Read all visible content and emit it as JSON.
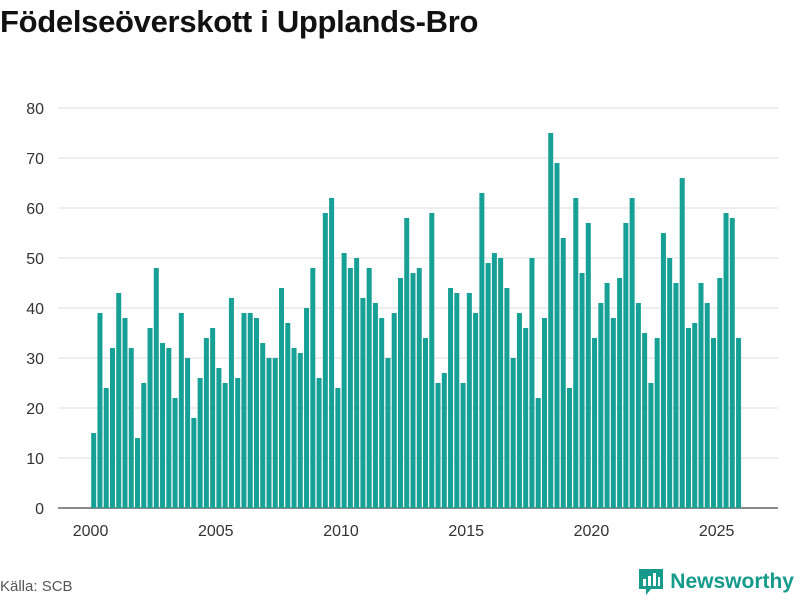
{
  "title": "Födelseöverskott i Upplands-Bro",
  "source": "Källa: SCB",
  "brand": "Newsworthy",
  "colors": {
    "bar": "#17a196",
    "grid": "#dddddd",
    "brand": "#159a8c"
  },
  "chart_data": {
    "type": "bar",
    "title": "Födelseöverskott i Upplands-Bro",
    "xlabel": "",
    "ylabel": "",
    "ylim": [
      0,
      80
    ],
    "yticks": [
      "0",
      "10",
      "20",
      "30",
      "40",
      "50",
      "60",
      "70",
      "80"
    ],
    "xticks": [
      "2000",
      "2005",
      "2010",
      "2015",
      "2020",
      "2025"
    ],
    "frequency": "quarterly",
    "start": "2000 Q1",
    "categories": [
      "2000 Q1",
      "2000 Q2",
      "2000 Q3",
      "2000 Q4",
      "2001 Q1",
      "2001 Q2",
      "2001 Q3",
      "2001 Q4",
      "2002 Q1",
      "2002 Q2",
      "2002 Q3",
      "2002 Q4",
      "2003 Q1",
      "2003 Q2",
      "2003 Q3",
      "2003 Q4",
      "2004 Q1",
      "2004 Q2",
      "2004 Q3",
      "2004 Q4",
      "2005 Q1",
      "2005 Q2",
      "2005 Q3",
      "2005 Q4",
      "2006 Q1",
      "2006 Q2",
      "2006 Q3",
      "2006 Q4",
      "2007 Q1",
      "2007 Q2",
      "2007 Q3",
      "2007 Q4",
      "2008 Q1",
      "2008 Q2",
      "2008 Q3",
      "2008 Q4",
      "2009 Q1",
      "2009 Q2",
      "2009 Q3",
      "2009 Q4",
      "2010 Q1",
      "2010 Q2",
      "2010 Q3",
      "2010 Q4",
      "2011 Q1",
      "2011 Q2",
      "2011 Q3",
      "2011 Q4",
      "2012 Q1",
      "2012 Q2",
      "2012 Q3",
      "2012 Q4",
      "2013 Q1",
      "2013 Q2",
      "2013 Q3",
      "2013 Q4",
      "2014 Q1",
      "2014 Q2",
      "2014 Q3",
      "2014 Q4",
      "2015 Q1",
      "2015 Q2",
      "2015 Q3",
      "2015 Q4",
      "2016 Q1",
      "2016 Q2",
      "2016 Q3",
      "2016 Q4",
      "2017 Q1",
      "2017 Q2",
      "2017 Q3",
      "2017 Q4",
      "2018 Q1",
      "2018 Q2",
      "2018 Q3",
      "2018 Q4",
      "2019 Q1",
      "2019 Q2",
      "2019 Q3",
      "2019 Q4",
      "2020 Q1",
      "2020 Q2",
      "2020 Q3",
      "2020 Q4",
      "2021 Q1",
      "2021 Q2",
      "2021 Q3",
      "2021 Q4",
      "2022 Q1",
      "2022 Q2",
      "2022 Q3",
      "2022 Q4",
      "2023 Q1",
      "2023 Q2",
      "2023 Q3",
      "2023 Q4",
      "2024 Q1",
      "2024 Q2",
      "2024 Q3",
      "2024 Q4",
      "2025 Q1",
      "2025 Q2",
      "2025 Q3",
      "2025 Q4"
    ],
    "series": [
      {
        "name": "Födelseöverskott",
        "values": [
          15,
          39,
          24,
          32,
          43,
          38,
          32,
          14,
          25,
          36,
          48,
          33,
          32,
          22,
          39,
          30,
          18,
          26,
          34,
          36,
          28,
          25,
          42,
          26,
          39,
          39,
          38,
          33,
          30,
          30,
          44,
          37,
          32,
          31,
          40,
          48,
          26,
          59,
          62,
          24,
          51,
          48,
          50,
          42,
          48,
          41,
          38,
          30,
          39,
          46,
          58,
          47,
          48,
          34,
          59,
          25,
          27,
          44,
          43,
          25,
          43,
          39,
          63,
          49,
          51,
          50,
          44,
          30,
          39,
          36,
          50,
          22,
          38,
          75,
          69,
          54,
          24,
          62,
          47,
          57,
          34,
          41,
          45,
          38,
          46,
          57,
          62,
          41,
          35,
          25,
          34,
          55,
          50,
          45,
          66,
          36,
          37,
          45,
          41,
          34,
          46,
          59,
          58,
          34
        ]
      }
    ]
  }
}
